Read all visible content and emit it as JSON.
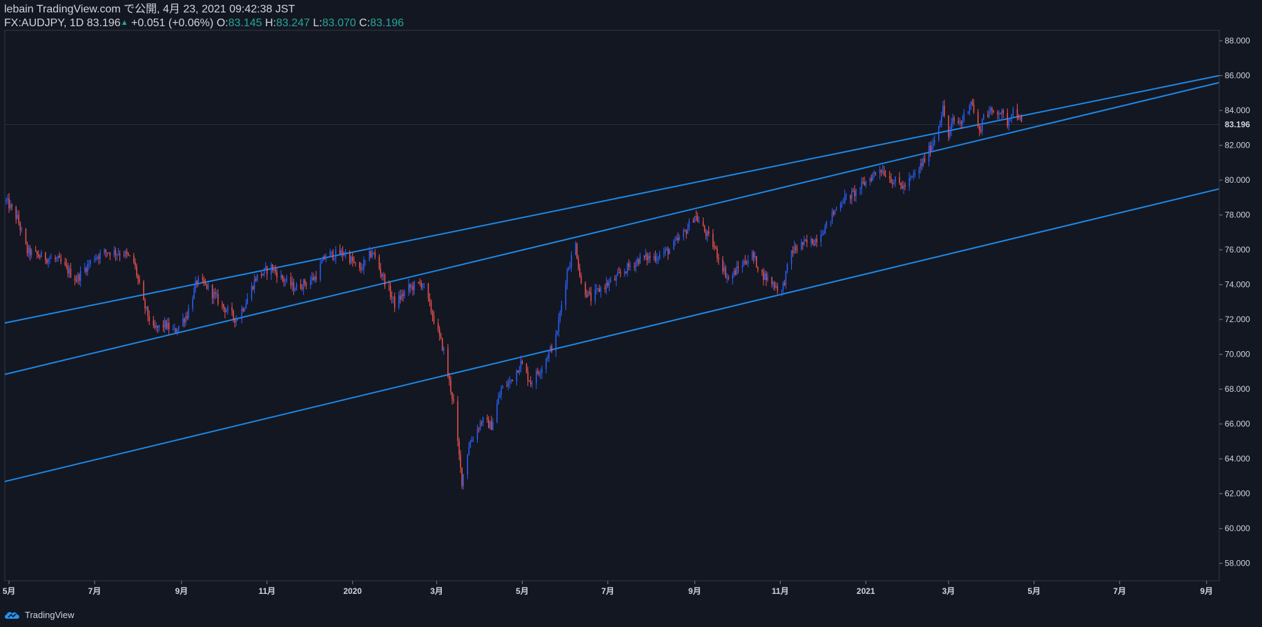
{
  "header": {
    "publish_line": "lebain TradingView.com で公開, 4月 23, 2021 09:42:38 JST",
    "symbol": "FX:AUDJPY, 1D",
    "last": "83.196",
    "arrow": "▲",
    "change": "+0.051 (+0.06%)",
    "o_label": "O:",
    "o_value": "83.145",
    "h_label": "H:",
    "h_value": "83.247",
    "l_label": "L:",
    "l_value": "83.070",
    "c_label": "C:",
    "c_value": "83.196"
  },
  "brand": {
    "name": "TradingView",
    "icon": "tradingview-cloud-icon"
  },
  "colors": {
    "background": "#131722",
    "up": "#2962ff",
    "down": "#ef5350",
    "channel": "#1e88e5",
    "axis_text": "#d1d4dc",
    "ohlc_value": "#26a69a"
  },
  "chart_data": {
    "type": "candlestick",
    "title": "FX:AUDJPY, 1D",
    "ylim": [
      57.0,
      88.6
    ],
    "y_ticks": [
      "58.000",
      "60.000",
      "62.000",
      "64.000",
      "66.000",
      "68.000",
      "70.000",
      "72.000",
      "74.000",
      "76.000",
      "78.000",
      "80.000",
      "82.000",
      "84.000",
      "86.000",
      "88.000"
    ],
    "y_tick_values": [
      58,
      60,
      62,
      64,
      66,
      68,
      70,
      72,
      74,
      76,
      78,
      80,
      82,
      84,
      86,
      88
    ],
    "x_ticks": [
      {
        "label": "5月",
        "date": "2019-05-01"
      },
      {
        "label": "7月",
        "date": "2019-07-01"
      },
      {
        "label": "9月",
        "date": "2019-09-01"
      },
      {
        "label": "11月",
        "date": "2019-11-01"
      },
      {
        "label": "2020",
        "date": "2020-01-01"
      },
      {
        "label": "3月",
        "date": "2020-03-01"
      },
      {
        "label": "5月",
        "date": "2020-05-01"
      },
      {
        "label": "7月",
        "date": "2020-07-01"
      },
      {
        "label": "9月",
        "date": "2020-09-01"
      },
      {
        "label": "11月",
        "date": "2020-11-01"
      },
      {
        "label": "2021",
        "date": "2021-01-01"
      },
      {
        "label": "3月",
        "date": "2021-03-01"
      },
      {
        "label": "5月",
        "date": "2021-05-01"
      },
      {
        "label": "7月",
        "date": "2021-07-01"
      },
      {
        "label": "9月",
        "date": "2021-09-01"
      }
    ],
    "xlim": [
      "2019-04-28",
      "2021-09-10"
    ],
    "last_price": {
      "value": 83.196,
      "label": "83.196"
    },
    "channel_lines": [
      {
        "name": "upper",
        "points": [
          [
            "2019-04-28",
            71.8
          ],
          [
            "2021-09-10",
            86.0
          ]
        ]
      },
      {
        "name": "middle",
        "points": [
          [
            "2019-04-28",
            68.85
          ],
          [
            "2021-09-10",
            85.6
          ]
        ]
      },
      {
        "name": "lower",
        "points": [
          [
            "2019-04-28",
            62.7
          ],
          [
            "2021-09-10",
            79.5
          ]
        ]
      }
    ],
    "price_path": [
      [
        "2019-04-29",
        78.8
      ],
      [
        "2019-05-07",
        77.8
      ],
      [
        "2019-05-14",
        75.9
      ],
      [
        "2019-05-24",
        75.6
      ],
      [
        "2019-06-05",
        75.4
      ],
      [
        "2019-06-18",
        74.3
      ],
      [
        "2019-07-01",
        75.6
      ],
      [
        "2019-07-10",
        75.9
      ],
      [
        "2019-07-22",
        75.8
      ],
      [
        "2019-07-29",
        75.3
      ],
      [
        "2019-08-05",
        72.9
      ],
      [
        "2019-08-12",
        71.4
      ],
      [
        "2019-08-20",
        71.7
      ],
      [
        "2019-08-27",
        71.3
      ],
      [
        "2019-09-05",
        72.3
      ],
      [
        "2019-09-12",
        74.2
      ],
      [
        "2019-09-19",
        73.9
      ],
      [
        "2019-10-01",
        72.7
      ],
      [
        "2019-10-10",
        72.0
      ],
      [
        "2019-10-17",
        73.0
      ],
      [
        "2019-10-24",
        74.4
      ],
      [
        "2019-11-04",
        75.0
      ],
      [
        "2019-11-11",
        74.4
      ],
      [
        "2019-11-21",
        73.8
      ],
      [
        "2019-12-05",
        74.4
      ],
      [
        "2019-12-13",
        75.7
      ],
      [
        "2019-12-27",
        75.8
      ],
      [
        "2020-01-06",
        74.8
      ],
      [
        "2020-01-15",
        75.9
      ],
      [
        "2020-01-24",
        74.2
      ],
      [
        "2020-01-31",
        72.9
      ],
      [
        "2020-02-10",
        73.8
      ],
      [
        "2020-02-20",
        74.1
      ],
      [
        "2020-02-28",
        72.0
      ],
      [
        "2020-03-06",
        70.2
      ],
      [
        "2020-03-09",
        68.8
      ],
      [
        "2020-03-13",
        67.2
      ],
      [
        "2020-03-16",
        64.8
      ],
      [
        "2020-03-19",
        62.7
      ],
      [
        "2020-03-24",
        64.8
      ],
      [
        "2020-04-02",
        66.2
      ],
      [
        "2020-04-09",
        65.9
      ],
      [
        "2020-04-16",
        68.0
      ],
      [
        "2020-04-22",
        68.4
      ],
      [
        "2020-04-30",
        69.5
      ],
      [
        "2020-05-07",
        68.4
      ],
      [
        "2020-05-15",
        69.3
      ],
      [
        "2020-05-25",
        70.9
      ],
      [
        "2020-06-02",
        74.8
      ],
      [
        "2020-06-08",
        76.3
      ],
      [
        "2020-06-12",
        74.0
      ],
      [
        "2020-06-19",
        73.2
      ],
      [
        "2020-06-26",
        73.8
      ],
      [
        "2020-07-06",
        74.3
      ],
      [
        "2020-07-14",
        74.9
      ],
      [
        "2020-07-24",
        75.5
      ],
      [
        "2020-08-04",
        75.6
      ],
      [
        "2020-08-14",
        76.0
      ],
      [
        "2020-08-25",
        77.0
      ],
      [
        "2020-09-01",
        78.0
      ],
      [
        "2020-09-07",
        77.2
      ],
      [
        "2020-09-14",
        76.3
      ],
      [
        "2020-09-21",
        75.0
      ],
      [
        "2020-09-25",
        74.3
      ],
      [
        "2020-10-05",
        75.2
      ],
      [
        "2020-10-12",
        75.7
      ],
      [
        "2020-10-19",
        74.6
      ],
      [
        "2020-10-28",
        74.0
      ],
      [
        "2020-11-02",
        73.6
      ],
      [
        "2020-11-09",
        75.9
      ],
      [
        "2020-11-16",
        76.3
      ],
      [
        "2020-11-25",
        76.5
      ],
      [
        "2020-12-04",
        77.4
      ],
      [
        "2020-12-14",
        78.8
      ],
      [
        "2020-12-23",
        79.2
      ],
      [
        "2021-01-05",
        80.2
      ],
      [
        "2021-01-11",
        80.7
      ],
      [
        "2021-01-20",
        80.0
      ],
      [
        "2021-01-28",
        79.6
      ],
      [
        "2021-02-05",
        80.3
      ],
      [
        "2021-02-12",
        81.2
      ],
      [
        "2021-02-19",
        82.4
      ],
      [
        "2021-02-25",
        84.1
      ],
      [
        "2021-03-01",
        82.5
      ],
      [
        "2021-03-04",
        83.4
      ],
      [
        "2021-03-10",
        83.3
      ],
      [
        "2021-03-17",
        84.6
      ],
      [
        "2021-03-23",
        82.7
      ],
      [
        "2021-03-26",
        83.8
      ],
      [
        "2021-04-06",
        84.0
      ],
      [
        "2021-04-12",
        83.3
      ],
      [
        "2021-04-15",
        84.0
      ],
      [
        "2021-04-20",
        83.7
      ],
      [
        "2021-04-22",
        83.196
      ]
    ]
  }
}
